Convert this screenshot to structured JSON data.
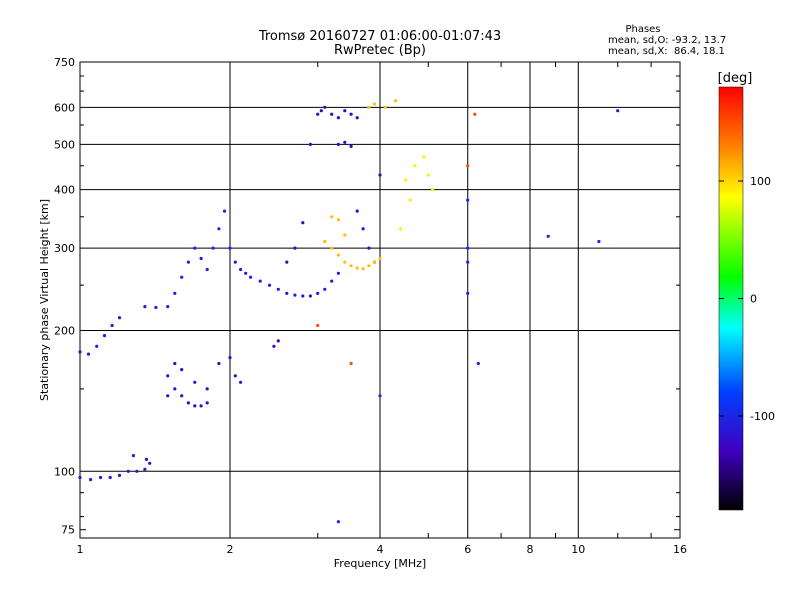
{
  "chart_data": {
    "type": "scatter",
    "title": "Tromsø 20160727 01:06:00-01:07:43",
    "subtitle": "RwPretec (Bp)",
    "xlabel": "Frequency [MHz]",
    "ylabel": "Stationary phase Virtual Height [km]",
    "x_scale": "log",
    "y_scale": "log",
    "xlim": [
      1,
      16
    ],
    "ylim": [
      72,
      750
    ],
    "x_ticks": [
      1,
      2,
      4,
      6,
      8,
      10,
      16
    ],
    "y_ticks": [
      75,
      100,
      200,
      300,
      400,
      500,
      600,
      750
    ],
    "grid": true,
    "stats": {
      "heading": "Phases",
      "line_o": "mean, sd,O: -93.2, 13.7",
      "line_x": "mean, sd,X:  86.4, 18.1"
    },
    "colorbar": {
      "label": "[deg]",
      "range": [
        -180,
        180
      ],
      "ticks": [
        100,
        0,
        -100
      ],
      "colors": [
        "#ff0000",
        "#ff8000",
        "#ffff00",
        "#00ff00",
        "#00ffff",
        "#0040ff",
        "#4000c0",
        "#000000"
      ]
    },
    "series": [
      {
        "name": "",
        "color_phase": -115,
        "points": [
          [
            1.0,
            97
          ],
          [
            1.05,
            96
          ],
          [
            1.1,
            97
          ],
          [
            1.15,
            97
          ],
          [
            1.2,
            98
          ],
          [
            1.25,
            100
          ],
          [
            1.3,
            100
          ],
          [
            1.35,
            101
          ],
          [
            1.38,
            104
          ],
          [
            1.28,
            108
          ],
          [
            1.36,
            106
          ]
        ]
      },
      {
        "name": "",
        "color_phase": -112,
        "points": [
          [
            1.0,
            180
          ],
          [
            1.04,
            178
          ],
          [
            1.08,
            185
          ],
          [
            1.12,
            195
          ],
          [
            1.16,
            205
          ],
          [
            1.2,
            213
          ]
        ]
      },
      {
        "name": "",
        "color_phase": -105,
        "points": [
          [
            1.35,
            225
          ],
          [
            1.42,
            224
          ],
          [
            1.5,
            225
          ],
          [
            1.55,
            240
          ],
          [
            1.6,
            260
          ],
          [
            1.65,
            280
          ],
          [
            1.7,
            300
          ],
          [
            1.75,
            285
          ],
          [
            1.8,
            270
          ],
          [
            1.85,
            300
          ],
          [
            1.9,
            330
          ],
          [
            1.95,
            360
          ],
          [
            2.0,
            300
          ],
          [
            2.05,
            280
          ],
          [
            2.1,
            270
          ],
          [
            2.15,
            265
          ],
          [
            2.2,
            260
          ],
          [
            2.3,
            255
          ],
          [
            2.4,
            250
          ],
          [
            2.5,
            245
          ],
          [
            2.6,
            240
          ],
          [
            2.7,
            238
          ],
          [
            2.8,
            237
          ],
          [
            2.9,
            237
          ],
          [
            3.0,
            240
          ],
          [
            3.1,
            245
          ],
          [
            3.2,
            255
          ],
          [
            3.3,
            265
          ]
        ]
      },
      {
        "name": "",
        "color_phase": -120,
        "points": [
          [
            1.5,
            160
          ],
          [
            1.55,
            150
          ],
          [
            1.6,
            145
          ],
          [
            1.65,
            140
          ],
          [
            1.7,
            138
          ],
          [
            1.75,
            138
          ],
          [
            1.8,
            140
          ],
          [
            1.5,
            145
          ],
          [
            1.55,
            170
          ],
          [
            1.6,
            165
          ],
          [
            1.7,
            155
          ],
          [
            1.8,
            150
          ],
          [
            1.9,
            170
          ],
          [
            2.0,
            175
          ],
          [
            2.05,
            160
          ],
          [
            2.1,
            155
          ]
        ]
      },
      {
        "name": "",
        "color_phase": -125,
        "points": [
          [
            2.5,
            190
          ],
          [
            2.45,
            185
          ],
          [
            2.6,
            280
          ],
          [
            2.7,
            300
          ],
          [
            2.8,
            340
          ],
          [
            2.9,
            500
          ],
          [
            3.0,
            580
          ],
          [
            3.05,
            590
          ],
          [
            3.1,
            600
          ],
          [
            3.2,
            580
          ],
          [
            3.3,
            570
          ],
          [
            3.4,
            590
          ],
          [
            3.5,
            580
          ],
          [
            3.6,
            570
          ],
          [
            3.3,
            500
          ],
          [
            3.4,
            505
          ],
          [
            3.5,
            495
          ],
          [
            3.6,
            360
          ],
          [
            3.7,
            330
          ],
          [
            3.8,
            300
          ],
          [
            3.9,
            280
          ],
          [
            4.0,
            430
          ]
        ]
      },
      {
        "name": "",
        "color_phase": 110,
        "points": [
          [
            3.1,
            310
          ],
          [
            3.2,
            300
          ],
          [
            3.3,
            290
          ],
          [
            3.4,
            280
          ],
          [
            3.5,
            275
          ],
          [
            3.6,
            272
          ],
          [
            3.7,
            271
          ],
          [
            3.8,
            275
          ],
          [
            3.9,
            280
          ],
          [
            4.0,
            285
          ],
          [
            3.2,
            350
          ],
          [
            3.3,
            345
          ],
          [
            3.4,
            320
          ],
          [
            3.8,
            600
          ],
          [
            3.9,
            610
          ],
          [
            4.1,
            600
          ],
          [
            4.3,
            620
          ]
        ]
      },
      {
        "name": "",
        "color_phase": 95,
        "points": [
          [
            4.5,
            420
          ],
          [
            4.7,
            450
          ],
          [
            4.9,
            470
          ],
          [
            5.0,
            430
          ],
          [
            5.1,
            400
          ],
          [
            4.6,
            380
          ],
          [
            4.4,
            330
          ]
        ]
      },
      {
        "name": "",
        "color_phase": -100,
        "points": [
          [
            6.0,
            300
          ],
          [
            6.0,
            280
          ],
          [
            6.0,
            240
          ],
          [
            6.0,
            380
          ],
          [
            6.3,
            170
          ],
          [
            8.7,
            318
          ],
          [
            11.0,
            310
          ],
          [
            12.0,
            590
          ],
          [
            4.0,
            145
          ],
          [
            3.3,
            78
          ]
        ]
      },
      {
        "name": "",
        "color_phase": 150,
        "points": [
          [
            6.0,
            450
          ],
          [
            6.2,
            580
          ],
          [
            3.0,
            205
          ],
          [
            3.5,
            170
          ]
        ]
      }
    ]
  }
}
